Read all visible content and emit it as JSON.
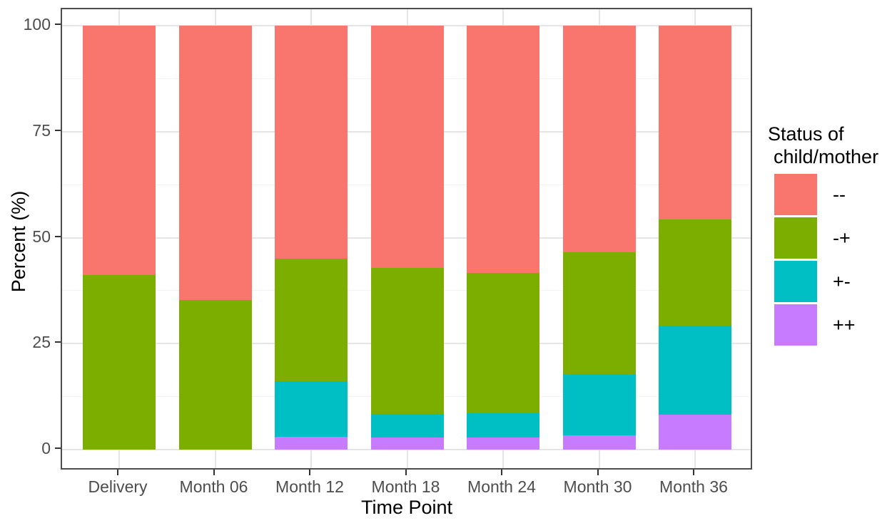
{
  "figure": {
    "xlabel": "Time Point",
    "ylabel": "Percent (%)"
  },
  "legend": {
    "title_lines": [
      "Status of",
      "child/mother"
    ],
    "items": [
      {
        "label": "--",
        "color": "#F8766D"
      },
      {
        "label": "-+",
        "color": "#7CAE00"
      },
      {
        "label": "+-",
        "color": "#00BFC4"
      },
      {
        "label": "++",
        "color": "#C77CFF"
      }
    ]
  },
  "chart_data": {
    "type": "bar",
    "stacked": true,
    "title": "",
    "xlabel": "Time Point",
    "ylabel": "Percent (%)",
    "categories": [
      "Delivery",
      "Month 06",
      "Month 12",
      "Month 18",
      "Month 24",
      "Month 30",
      "Month 36"
    ],
    "series": [
      {
        "name": "++",
        "color": "#C77CFF",
        "values": [
          0,
          0,
          3.1,
          2.9,
          2.8,
          3.3,
          8.2
        ]
      },
      {
        "name": "+-",
        "color": "#00BFC4",
        "values": [
          0,
          0,
          13.0,
          5.5,
          5.7,
          14.5,
          21.0
        ]
      },
      {
        "name": "-+",
        "color": "#7CAE00",
        "values": [
          41.2,
          35.3,
          29.0,
          34.5,
          33.1,
          28.7,
          25.1
        ]
      },
      {
        "name": "--",
        "color": "#F8766D",
        "values": [
          58.8,
          64.7,
          54.9,
          57.1,
          58.4,
          53.5,
          45.7
        ]
      }
    ],
    "y_ticks": [
      0,
      25,
      50,
      75,
      100
    ],
    "y_minor_ticks": [
      12.5,
      37.5,
      62.5,
      87.5
    ],
    "ylim": [
      0,
      100
    ],
    "grid": true,
    "legend_position": "right",
    "legend_title": "Status of child/mother",
    "stack_order_bottom_to_top": [
      "++",
      "+-",
      "-+",
      "--"
    ],
    "legend_order_top_to_bottom": [
      "--",
      "-+",
      "+-",
      "++"
    ]
  }
}
